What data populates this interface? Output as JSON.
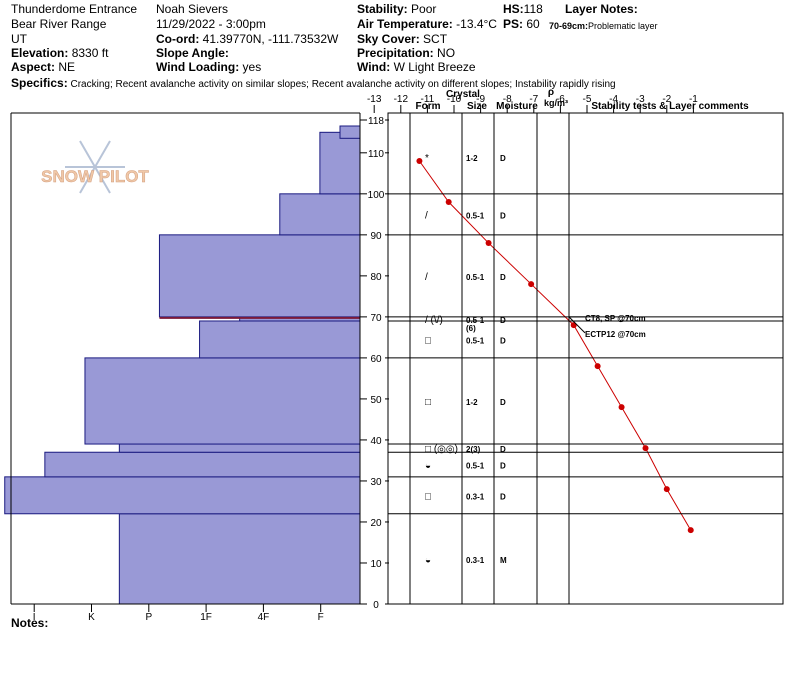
{
  "header": {
    "location": "Thunderdome Entrance",
    "range": "Bear River Range",
    "state": "UT",
    "elevation_label": "Elevation:",
    "elevation": "8330 ft",
    "aspect_label": "Aspect:",
    "aspect": "NE",
    "observer": "Noah Sievers",
    "datetime": "11/29/2022 - 3:00pm",
    "coord_label": "Co-ord:",
    "coord": "41.39770N, -111.73532W",
    "slope_label": "Slope Angle:",
    "slope": "",
    "wind_loading_label": "Wind Loading:",
    "wind_loading": "yes",
    "stability_label": "Stability:",
    "stability": "Poor",
    "air_temp_label": "Air Temperature:",
    "air_temp": "-13.4°C",
    "sky_label": "Sky Cover:",
    "sky": "SCT",
    "precip_label": "Precipitation:",
    "precip": "NO",
    "wind_label": "Wind:",
    "wind": "W Light Breeze",
    "hs_label": "HS:",
    "hs": "118",
    "ps_label": "PS:",
    "ps": "60",
    "layer_notes_label": "Layer Notes:",
    "layer_note_depth": "70-69cm:",
    "layer_note_text": "Problematic layer",
    "specifics_label": "Specifics:",
    "specifics": "Cracking; Recent avalanche activity on similar slopes; Recent avalanche activity on different slopes; Instability rapidly rising"
  },
  "columns": {
    "crystal": "Crystal",
    "form": "Form",
    "size": "Size",
    "moisture": "Moisture",
    "rho": "ρ",
    "density_unit": "kg/m³",
    "stability": "Stability tests & Layer comments"
  },
  "notes_label": "Notes:",
  "watermark": "SNOW PILOT",
  "colors": {
    "hardness_fill": "#9999d6",
    "hardness_stroke": "#1a1a80",
    "temp_line": "#cc0000",
    "weak_layer": "#7a1a3a"
  },
  "chart_data": {
    "type": "snow_profile",
    "height_axis": {
      "ticks": [
        0,
        10,
        20,
        30,
        40,
        50,
        60,
        70,
        80,
        90,
        100,
        110,
        118
      ],
      "range": [
        0,
        118
      ],
      "unit": "cm"
    },
    "temperature_axis": {
      "ticks": [
        -13,
        -12,
        -11,
        -10,
        -9,
        -8,
        -7,
        -6,
        -5,
        -4,
        -3,
        -2,
        -1
      ],
      "range": [
        -13,
        0
      ],
      "unit": "°C"
    },
    "hardness_axis": {
      "ticks": [
        "I",
        "K",
        "P",
        "1F",
        "4F",
        "F"
      ],
      "order_right_to_left": [
        "F",
        "4F",
        "1F",
        "P",
        "K",
        "I"
      ]
    },
    "hardness_profile": [
      {
        "bottom": 0,
        "top": 22,
        "hardness": 4.2
      },
      {
        "bottom": 22,
        "top": 31,
        "hardness": 6.2
      },
      {
        "bottom": 31,
        "top": 37,
        "hardness": 5.5
      },
      {
        "bottom": 37,
        "top": 39,
        "hardness": 4.2
      },
      {
        "bottom": 39,
        "top": 60,
        "hardness": 4.8
      },
      {
        "bottom": 60,
        "top": 69,
        "hardness": 2.8
      },
      {
        "bottom": 69,
        "top": 70,
        "hardness": 2.1
      },
      {
        "bottom": 70,
        "top": 90,
        "hardness": 3.5
      },
      {
        "bottom": 90,
        "top": 100,
        "hardness": 1.4
      },
      {
        "bottom": 100,
        "top": 115,
        "hardness": 0.7
      },
      {
        "bottom": 115,
        "top": 118,
        "hardness": 0.0
      }
    ],
    "temperature_profile": [
      {
        "height": 108,
        "temp": -11.3
      },
      {
        "height": 98,
        "temp": -10.2
      },
      {
        "height": 88,
        "temp": -8.7
      },
      {
        "height": 78,
        "temp": -7.1
      },
      {
        "height": 68,
        "temp": -5.5
      },
      {
        "height": 58,
        "temp": -4.6
      },
      {
        "height": 48,
        "temp": -3.7
      },
      {
        "height": 38,
        "temp": -2.8
      },
      {
        "height": 28,
        "temp": -2.0
      },
      {
        "height": 18,
        "temp": -1.1
      }
    ],
    "layers": [
      {
        "bottom": 100,
        "top": 118,
        "form": "*",
        "size": "1-2",
        "moisture": "D"
      },
      {
        "bottom": 90,
        "top": 100,
        "form": "/",
        "size": "0.5-1",
        "moisture": "D"
      },
      {
        "bottom": 70,
        "top": 90,
        "form": "/",
        "size": "0.5-1",
        "moisture": "D"
      },
      {
        "bottom": 69,
        "top": 70,
        "form": "/ (\\/)",
        "size": "0.5-1",
        "size2": "(6)",
        "moisture": "D"
      },
      {
        "bottom": 60,
        "top": 69,
        "form": "□",
        "size": "0.5-1",
        "moisture": "D"
      },
      {
        "bottom": 39,
        "top": 60,
        "form": "□",
        "size": "1-2",
        "moisture": "D"
      },
      {
        "bottom": 37,
        "top": 39,
        "form": "□ (◎◎)",
        "size": "2(3)",
        "moisture": "D"
      },
      {
        "bottom": 31,
        "top": 37,
        "form": "◒",
        "size": "0.5-1",
        "moisture": "D"
      },
      {
        "bottom": 22,
        "top": 31,
        "form": "□",
        "size": "0.3-1",
        "moisture": "D"
      },
      {
        "bottom": 0,
        "top": 22,
        "form": "◒",
        "size": "0.3-1",
        "moisture": "M"
      }
    ],
    "tests": [
      {
        "height": 70,
        "label": "CT8, SP @70cm"
      },
      {
        "height": 70,
        "label": "ECTP12 @70cm"
      }
    ]
  }
}
